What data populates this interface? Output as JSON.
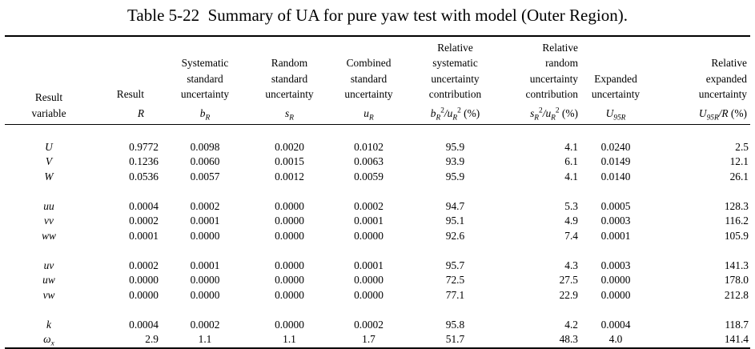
{
  "caption": "Table 5-22  Summary of UA for pure yaw test with model (Outer Region).",
  "headers": [
    {
      "lines": [
        "Result",
        "variable"
      ],
      "symbol": ""
    },
    {
      "lines": [
        "Result"
      ],
      "symbol": "R"
    },
    {
      "lines": [
        "Systematic",
        "standard",
        "uncertainty"
      ],
      "symbol": "b_R"
    },
    {
      "lines": [
        "Random",
        "standard",
        "uncertainty"
      ],
      "symbol": "s_R"
    },
    {
      "lines": [
        "Combined",
        "standard",
        "uncertainty"
      ],
      "symbol": "u_R"
    },
    {
      "lines": [
        "Relative",
        "systematic",
        "uncertainty",
        "contribution"
      ],
      "symbol": "b_R^2/u_R^2 (%)"
    },
    {
      "lines": [
        "Relative",
        "random",
        "uncertainty",
        "contribution"
      ],
      "symbol": "s_R^2/u_R^2 (%)"
    },
    {
      "lines": [
        "Expanded",
        "uncertainty"
      ],
      "symbol": "U_95R"
    },
    {
      "lines": [
        "Relative",
        "expanded",
        "uncertainty"
      ],
      "symbol": "U_95R/R (%)"
    }
  ],
  "groups": [
    [
      {
        "var": "U",
        "vals": [
          "0.9772",
          "0.0098",
          "0.0020",
          "0.0102",
          "95.9",
          "4.1",
          "0.0240",
          "2.5"
        ]
      },
      {
        "var": "V",
        "vals": [
          "0.1236",
          "0.0060",
          "0.0015",
          "0.0063",
          "93.9",
          "6.1",
          "0.0149",
          "12.1"
        ]
      },
      {
        "var": "W",
        "vals": [
          "0.0536",
          "0.0057",
          "0.0012",
          "0.0059",
          "95.9",
          "4.1",
          "0.0140",
          "26.1"
        ]
      }
    ],
    [
      {
        "var": "uu",
        "vals": [
          "0.0004",
          "0.0002",
          "0.0000",
          "0.0002",
          "94.7",
          "5.3",
          "0.0005",
          "128.3"
        ]
      },
      {
        "var": "vv",
        "vals": [
          "0.0002",
          "0.0001",
          "0.0000",
          "0.0001",
          "95.1",
          "4.9",
          "0.0003",
          "116.2"
        ]
      },
      {
        "var": "ww",
        "vals": [
          "0.0001",
          "0.0000",
          "0.0000",
          "0.0000",
          "92.6",
          "7.4",
          "0.0001",
          "105.9"
        ]
      }
    ],
    [
      {
        "var": "uv",
        "vals": [
          "0.0002",
          "0.0001",
          "0.0000",
          "0.0001",
          "95.7",
          "4.3",
          "0.0003",
          "141.3"
        ]
      },
      {
        "var": "uw",
        "vals": [
          "0.0000",
          "0.0000",
          "0.0000",
          "0.0000",
          "72.5",
          "27.5",
          "0.0000",
          "178.0"
        ]
      },
      {
        "var": "vw",
        "vals": [
          "0.0000",
          "0.0000",
          "0.0000",
          "0.0000",
          "77.1",
          "22.9",
          "0.0000",
          "212.8"
        ]
      }
    ],
    [
      {
        "var": "k",
        "vals": [
          "0.0004",
          "0.0002",
          "0.0000",
          "0.0002",
          "95.8",
          "4.2",
          "0.0004",
          "118.7"
        ]
      },
      {
        "var": "ω_x",
        "vals": [
          "2.9",
          "1.1",
          "1.1",
          "1.7",
          "51.7",
          "48.3",
          "4.0",
          "141.4"
        ]
      }
    ]
  ]
}
